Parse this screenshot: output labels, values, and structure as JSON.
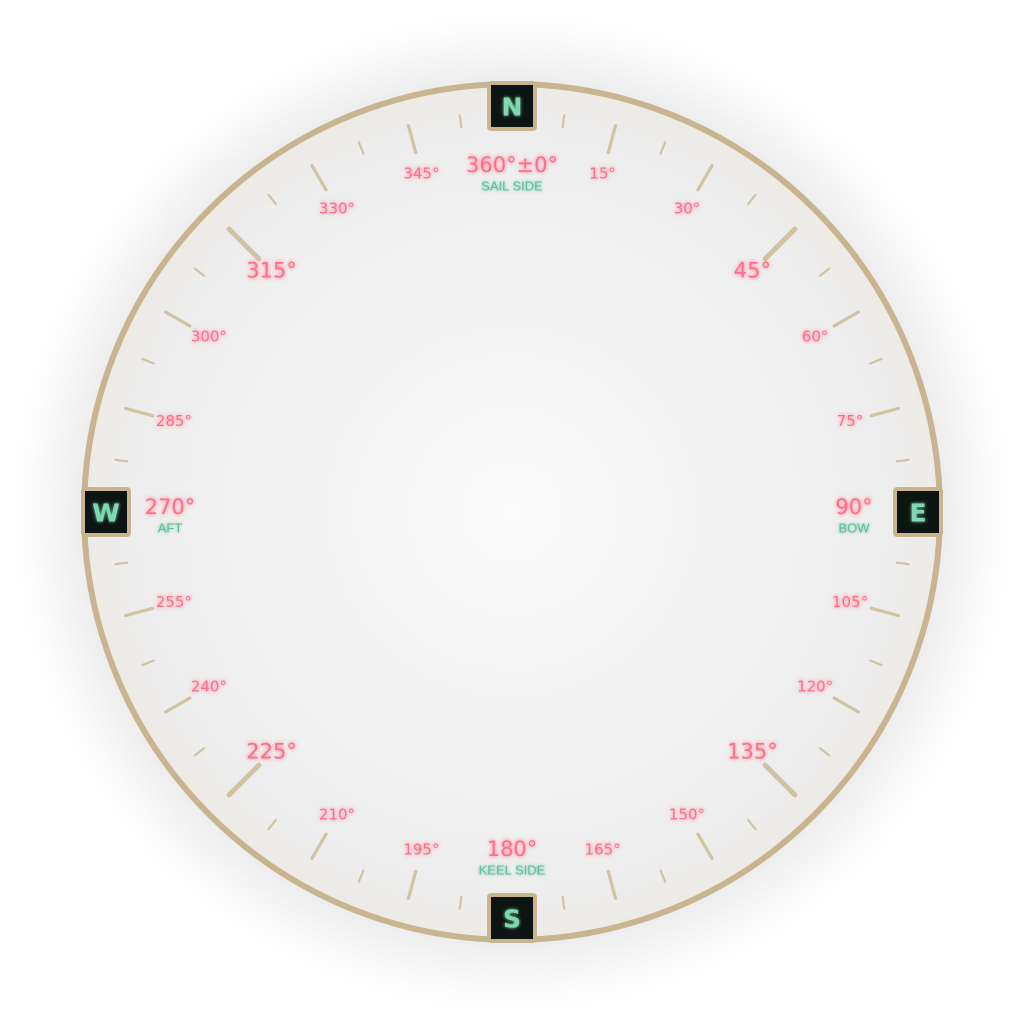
{
  "dial": {
    "colors": {
      "rim": "#c8b590",
      "tick": "#d2c3a2",
      "degree_label": "#ff6f86",
      "sub_label": "#5fbf9a",
      "cardinal_bg": "#0c1512",
      "cardinal_text": "#7fd8b2"
    },
    "tick_step_degrees": 7.5,
    "cardinals": [
      {
        "id": "n",
        "letter": "N",
        "bearing": 0
      },
      {
        "id": "e",
        "letter": "E",
        "bearing": 90
      },
      {
        "id": "s",
        "letter": "S",
        "bearing": 180
      },
      {
        "id": "w",
        "letter": "W",
        "bearing": 270
      }
    ],
    "degree_labels": [
      {
        "bearing": 0,
        "text": "360°±0°",
        "major": true,
        "sub": "SAIL SIDE"
      },
      {
        "bearing": 15,
        "text": "15°",
        "major": false
      },
      {
        "bearing": 30,
        "text": "30°",
        "major": false
      },
      {
        "bearing": 45,
        "text": "45°",
        "major": true
      },
      {
        "bearing": 60,
        "text": "60°",
        "major": false
      },
      {
        "bearing": 75,
        "text": "75°",
        "major": false
      },
      {
        "bearing": 90,
        "text": "90°",
        "major": true,
        "sub": "BOW"
      },
      {
        "bearing": 105,
        "text": "105°",
        "major": false
      },
      {
        "bearing": 120,
        "text": "120°",
        "major": false
      },
      {
        "bearing": 135,
        "text": "135°",
        "major": true
      },
      {
        "bearing": 150,
        "text": "150°",
        "major": false
      },
      {
        "bearing": 165,
        "text": "165°",
        "major": false
      },
      {
        "bearing": 180,
        "text": "180°",
        "major": true,
        "sub": "KEEL SIDE"
      },
      {
        "bearing": 195,
        "text": "195°",
        "major": false
      },
      {
        "bearing": 210,
        "text": "210°",
        "major": false
      },
      {
        "bearing": 225,
        "text": "225°",
        "major": true
      },
      {
        "bearing": 240,
        "text": "240°",
        "major": false
      },
      {
        "bearing": 255,
        "text": "255°",
        "major": false
      },
      {
        "bearing": 270,
        "text": "270°",
        "major": true,
        "sub": "AFT"
      },
      {
        "bearing": 285,
        "text": "285°",
        "major": false
      },
      {
        "bearing": 300,
        "text": "300°",
        "major": false
      },
      {
        "bearing": 315,
        "text": "315°",
        "major": true
      },
      {
        "bearing": 330,
        "text": "330°",
        "major": false
      },
      {
        "bearing": 345,
        "text": "345°",
        "major": false
      }
    ]
  }
}
